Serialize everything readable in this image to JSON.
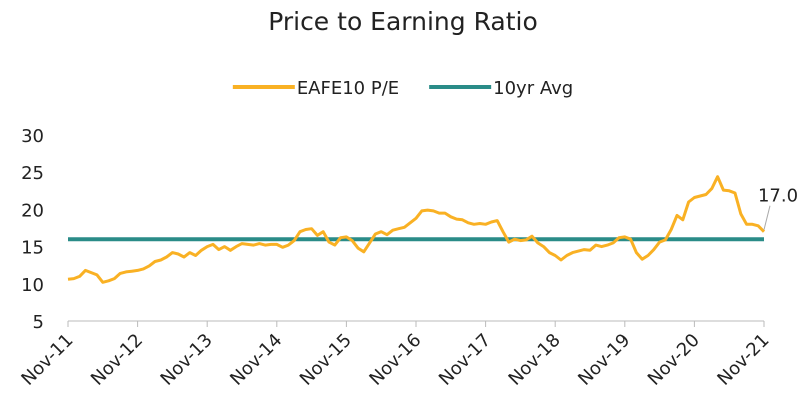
{
  "chart_data": {
    "type": "line",
    "title": "Price to Earning Ratio",
    "categories": [
      "Nov-11",
      null,
      null,
      null,
      null,
      null,
      null,
      null,
      null,
      null,
      null,
      null,
      "Nov-12",
      null,
      null,
      null,
      null,
      null,
      null,
      null,
      null,
      null,
      null,
      null,
      "Nov-13",
      null,
      null,
      null,
      null,
      null,
      null,
      null,
      null,
      null,
      null,
      null,
      "Nov-14",
      null,
      null,
      null,
      null,
      null,
      null,
      null,
      null,
      null,
      null,
      null,
      "Nov-15",
      null,
      null,
      null,
      null,
      null,
      null,
      null,
      null,
      null,
      null,
      null,
      "Nov-16",
      null,
      null,
      null,
      null,
      null,
      null,
      null,
      null,
      null,
      null,
      null,
      "Nov-17",
      null,
      null,
      null,
      null,
      null,
      null,
      null,
      null,
      null,
      null,
      null,
      "Nov-18",
      null,
      null,
      null,
      null,
      null,
      null,
      null,
      null,
      null,
      null,
      null,
      "Nov-19",
      null,
      null,
      null,
      null,
      null,
      null,
      null,
      null,
      null,
      null,
      null,
      "Nov-20",
      null,
      null,
      null,
      null,
      null,
      null,
      null,
      null,
      null,
      null,
      null,
      "Nov-21"
    ],
    "series": [
      {
        "name": "EAFE10 P/E",
        "color": "#f9b124",
        "values": [
          10.6,
          10.7,
          11.0,
          11.8,
          11.5,
          11.2,
          10.2,
          10.4,
          10.7,
          11.4,
          11.6,
          11.7,
          11.8,
          12.0,
          12.4,
          13.0,
          13.2,
          13.6,
          14.2,
          14.0,
          13.6,
          14.2,
          13.8,
          14.5,
          15.0,
          15.3,
          14.6,
          15.0,
          14.5,
          15.0,
          15.4,
          15.3,
          15.2,
          15.4,
          15.2,
          15.3,
          15.3,
          14.9,
          15.2,
          15.8,
          17.0,
          17.3,
          17.4,
          16.5,
          17.0,
          15.6,
          15.2,
          16.2,
          16.3,
          15.8,
          14.8,
          14.3,
          15.5,
          16.7,
          17.0,
          16.6,
          17.2,
          17.4,
          17.6,
          18.2,
          18.8,
          19.8,
          19.9,
          19.8,
          19.5,
          19.5,
          19.0,
          18.7,
          18.6,
          18.2,
          18.0,
          18.1,
          18.0,
          18.3,
          18.5,
          17.0,
          15.6,
          16.0,
          15.8,
          15.9,
          16.4,
          15.5,
          15.0,
          14.2,
          13.8,
          13.2,
          13.8,
          14.2,
          14.4,
          14.6,
          14.5,
          15.2,
          15.0,
          15.2,
          15.5,
          16.2,
          16.3,
          16.0,
          14.2,
          13.3,
          13.8,
          14.6,
          15.6,
          15.9,
          17.3,
          19.2,
          18.6,
          21.0,
          21.6,
          21.8,
          22.0,
          22.8,
          24.4,
          22.6,
          22.5,
          22.2,
          19.4,
          18.0,
          18.0,
          17.8,
          17.0
        ]
      },
      {
        "name": "10yr Avg",
        "color": "#2a8c88",
        "values": [
          16,
          16,
          16,
          16,
          16,
          16,
          16,
          16,
          16,
          16,
          16,
          16,
          16,
          16,
          16,
          16,
          16,
          16,
          16,
          16,
          16,
          16,
          16,
          16,
          16,
          16,
          16,
          16,
          16,
          16,
          16,
          16,
          16,
          16,
          16,
          16,
          16,
          16,
          16,
          16,
          16,
          16,
          16,
          16,
          16,
          16,
          16,
          16,
          16,
          16,
          16,
          16,
          16,
          16,
          16,
          16,
          16,
          16,
          16,
          16,
          16,
          16,
          16,
          16,
          16,
          16,
          16,
          16,
          16,
          16,
          16,
          16,
          16,
          16,
          16,
          16,
          16,
          16,
          16,
          16,
          16,
          16,
          16,
          16,
          16,
          16,
          16,
          16,
          16,
          16,
          16,
          16,
          16,
          16,
          16,
          16,
          16,
          16,
          16,
          16,
          16,
          16,
          16,
          16,
          16,
          16,
          16,
          16,
          16,
          16,
          16,
          16,
          16,
          16,
          16,
          16,
          16,
          16,
          16,
          16,
          16
        ]
      }
    ],
    "annotations": [
      {
        "text": "17.0"
      }
    ],
    "ylim": [
      5,
      30
    ],
    "yticks": [
      5,
      10,
      15,
      20,
      25,
      30
    ],
    "grid": false,
    "legend": "top"
  }
}
